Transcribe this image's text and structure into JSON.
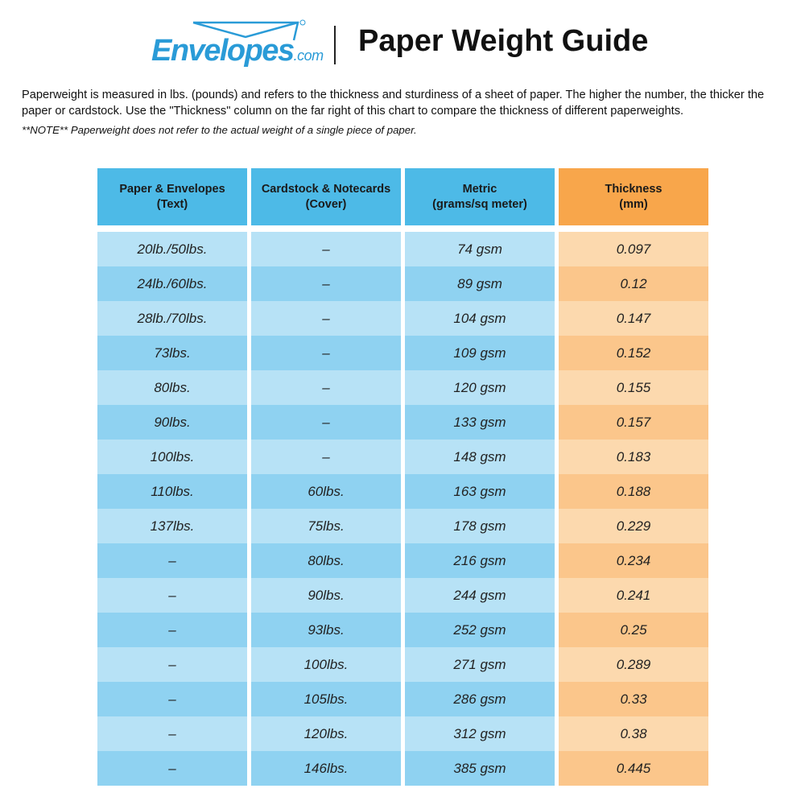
{
  "header": {
    "logo_text": "Envelopes",
    "logo_suffix": ".com",
    "title": "Paper Weight Guide"
  },
  "intro": "Paperweight is measured in lbs. (pounds) and refers to the thickness and sturdiness of a sheet of paper. The higher the number, the thicker the paper or cardstock. Use the \"Thickness\" column on the far right of this chart to compare the thickness of different paperweights.",
  "note": "**NOTE** Paperweight does not refer to the actual weight of a single piece of paper.",
  "colors": {
    "header_blue": "#4dbae7",
    "header_orange": "#f8a64b",
    "row_light_blue": "#b7e2f6",
    "row_dark_blue": "#8fd2f1",
    "row_light_orange": "#fcd9ae",
    "row_dark_orange": "#fbc68b",
    "logo_blue": "#2a9bd7"
  },
  "table": {
    "columns": [
      {
        "line1": "Paper & Envelopes",
        "line2": "(Text)"
      },
      {
        "line1": "Cardstock & Notecards",
        "line2": "(Cover)"
      },
      {
        "line1": "Metric",
        "line2": "(grams/sq meter)"
      },
      {
        "line1": "Thickness",
        "line2": "(mm)"
      }
    ],
    "rows": [
      [
        "20lb./50lbs.",
        "–",
        "74 gsm",
        "0.097"
      ],
      [
        "24lb./60lbs.",
        "–",
        "89 gsm",
        "0.12"
      ],
      [
        "28lb./70lbs.",
        "–",
        "104 gsm",
        "0.147"
      ],
      [
        "73lbs.",
        "–",
        "109 gsm",
        "0.152"
      ],
      [
        "80lbs.",
        "–",
        "120 gsm",
        "0.155"
      ],
      [
        "90lbs.",
        "–",
        "133 gsm",
        "0.157"
      ],
      [
        "100lbs.",
        "–",
        "148 gsm",
        "0.183"
      ],
      [
        "110lbs.",
        "60lbs.",
        "163 gsm",
        "0.188"
      ],
      [
        "137lbs.",
        "75lbs.",
        "178 gsm",
        "0.229"
      ],
      [
        "–",
        "80lbs.",
        "216 gsm",
        "0.234"
      ],
      [
        "–",
        "90lbs.",
        "244 gsm",
        "0.241"
      ],
      [
        "–",
        "93lbs.",
        "252 gsm",
        "0.25"
      ],
      [
        "–",
        "100lbs.",
        "271 gsm",
        "0.289"
      ],
      [
        "–",
        "105lbs.",
        "286 gsm",
        "0.33"
      ],
      [
        "–",
        "120lbs.",
        "312 gsm",
        "0.38"
      ],
      [
        "–",
        "146lbs.",
        "385 gsm",
        "0.445"
      ]
    ]
  }
}
